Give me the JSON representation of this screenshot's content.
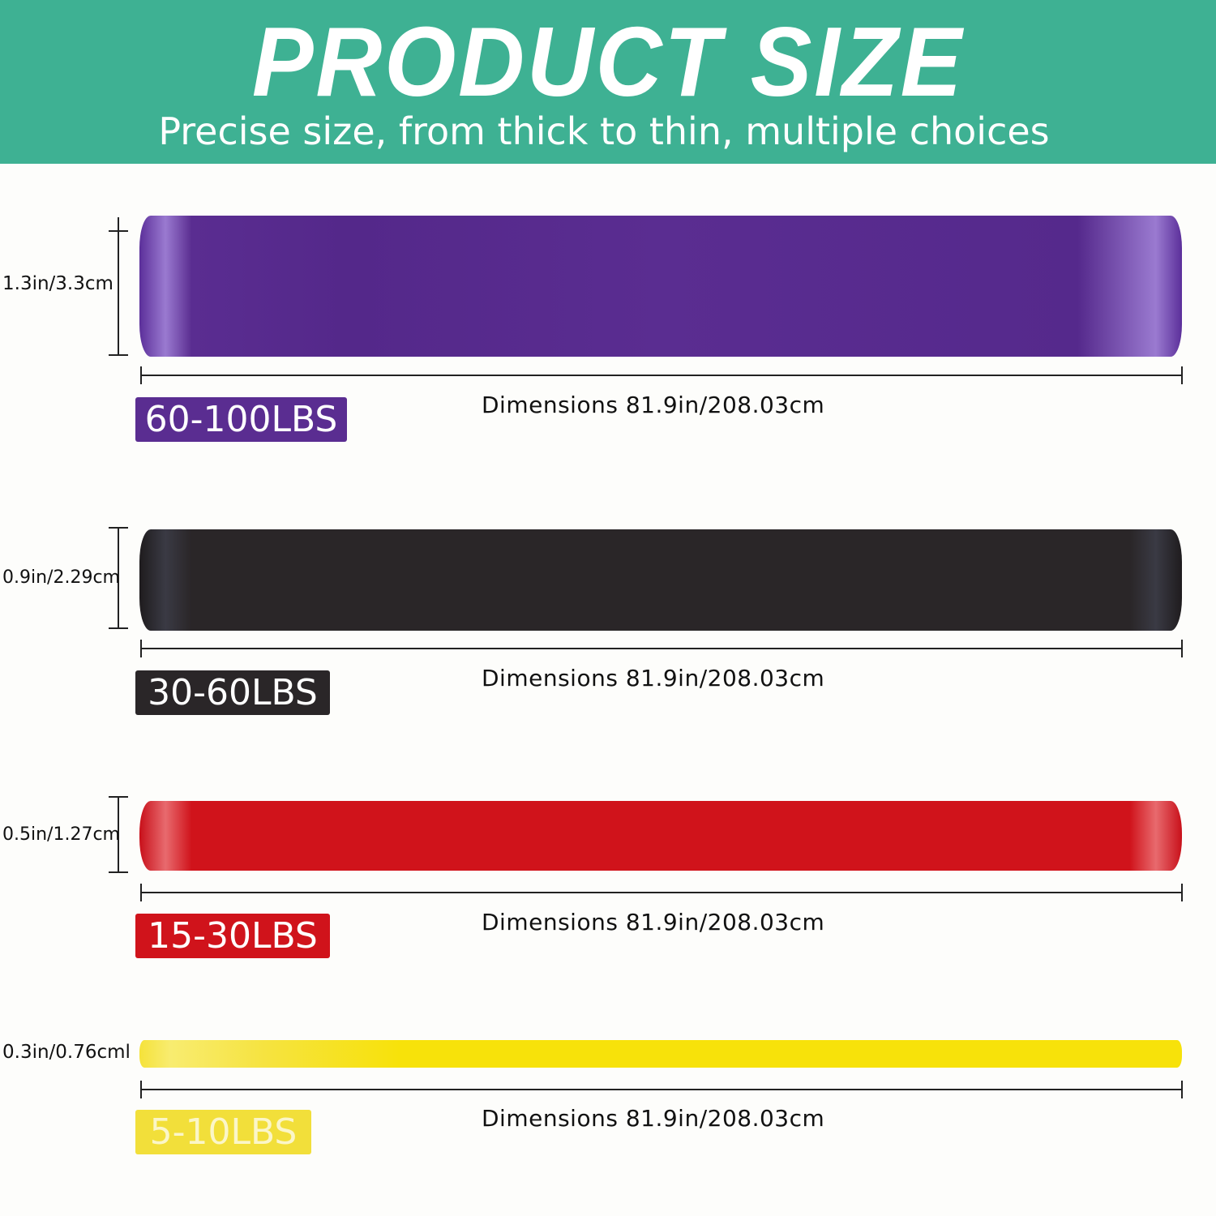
{
  "header": {
    "title": "PRODUCT SIZE",
    "subtitle": "Precise size, from thick to thin, multiple choices"
  },
  "bands": [
    {
      "thickness": "1.3in/3.3cm",
      "resistance": "60-100LBS",
      "dimensions": "Dimensions 81.9in/208.03cm",
      "color": "#5a2d91"
    },
    {
      "thickness": "0.9in/2.29cm",
      "resistance": "30-60LBS",
      "dimensions": "Dimensions 81.9in/208.03cm",
      "color": "#2a2628"
    },
    {
      "thickness": "0.5in/1.27cm",
      "resistance": "15-30LBS",
      "dimensions": "Dimensions 81.9in/208.03cm",
      "color": "#d0131b"
    },
    {
      "thickness": "0.3in/0.76cml",
      "resistance": "5-10LBS",
      "dimensions": "Dimensions 81.9in/208.03cm",
      "color": "#f7e20a"
    }
  ],
  "colors": {
    "header": "#3eb193",
    "yellow_badge": "#f2df3a"
  }
}
